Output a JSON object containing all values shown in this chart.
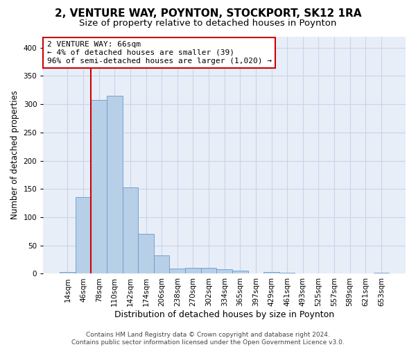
{
  "title1": "2, VENTURE WAY, POYNTON, STOCKPORT, SK12 1RA",
  "title2": "Size of property relative to detached houses in Poynton",
  "xlabel": "Distribution of detached houses by size in Poynton",
  "ylabel": "Number of detached properties",
  "categories": [
    "14sqm",
    "46sqm",
    "78sqm",
    "110sqm",
    "142sqm",
    "174sqm",
    "206sqm",
    "238sqm",
    "270sqm",
    "302sqm",
    "334sqm",
    "365sqm",
    "397sqm",
    "429sqm",
    "461sqm",
    "493sqm",
    "525sqm",
    "557sqm",
    "589sqm",
    "621sqm",
    "653sqm"
  ],
  "values": [
    3,
    136,
    308,
    315,
    153,
    70,
    32,
    9,
    11,
    10,
    8,
    6,
    0,
    3,
    2,
    0,
    0,
    0,
    0,
    0,
    2
  ],
  "bar_color": "#b8cfe8",
  "bar_edge_color": "#6699cc",
  "vline_x": 1.5,
  "vline_color": "#cc0000",
  "annotation_text": "2 VENTURE WAY: 66sqm\n← 4% of detached houses are smaller (39)\n96% of semi-detached houses are larger (1,020) →",
  "annotation_box_color": "#ffffff",
  "annotation_box_edge": "#cc0000",
  "ylim": [
    0,
    420
  ],
  "yticks": [
    0,
    50,
    100,
    150,
    200,
    250,
    300,
    350,
    400
  ],
  "grid_color": "#c8d4e8",
  "bg_color": "#e8eef8",
  "footer": "Contains HM Land Registry data © Crown copyright and database right 2024.\nContains public sector information licensed under the Open Government Licence v3.0.",
  "title1_fontsize": 11,
  "title2_fontsize": 9.5,
  "xlabel_fontsize": 9,
  "ylabel_fontsize": 8.5,
  "tick_fontsize": 7.5,
  "annot_fontsize": 8,
  "footer_fontsize": 6.5
}
